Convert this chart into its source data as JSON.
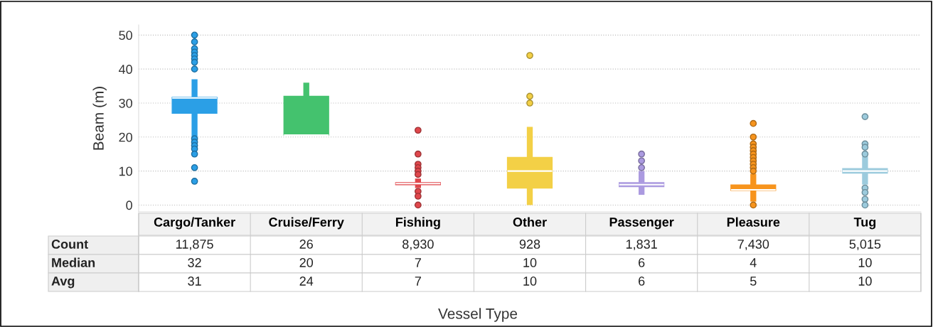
{
  "chart_data": {
    "type": "box",
    "ylabel": "Beam (m)",
    "ylim": [
      -2,
      53
    ],
    "yticks": [
      0,
      10,
      20,
      30,
      40,
      50
    ],
    "grid": "y",
    "categories": [
      "Cargo/Tanker",
      "Cruise/Ferry",
      "Fishing",
      "Other",
      "Passenger",
      "Pleasure",
      "Tug"
    ],
    "colors": [
      "#2b9fe6",
      "#44c26e",
      "#e0474c",
      "#f3d046",
      "#ab9ae0",
      "#f7941d",
      "#9ccbdd"
    ],
    "boxes": [
      {
        "low": 20,
        "q1": 27,
        "median": 31.5,
        "q3": 31.7,
        "high": 37,
        "outliers": [
          50,
          48,
          46,
          45,
          44,
          43,
          42,
          40,
          19.5,
          18.5,
          17.5,
          16.5,
          15,
          11,
          7
        ]
      },
      {
        "low": 20.6,
        "q1": 20.6,
        "median": 20.6,
        "q3": 32,
        "high": 36
      },
      {
        "low": 5,
        "q1": 6,
        "median": 6.3,
        "q3": 6.6,
        "high": 7.8,
        "outliers": [
          22,
          15,
          12,
          11,
          10,
          9,
          4,
          2.6,
          0
        ]
      },
      {
        "low": 0,
        "q1": 5,
        "median": 10,
        "q3": 14,
        "high": 23,
        "outliers": [
          44,
          32,
          30
        ]
      },
      {
        "low": 3,
        "q1": 5.4,
        "median": 6,
        "q3": 6.6,
        "high": 10,
        "outliers": [
          15,
          13,
          11
        ]
      },
      {
        "low": 1,
        "q1": 4.3,
        "median": 4.5,
        "q3": 5.9,
        "high": 9.2,
        "outliers": [
          24,
          20,
          18,
          17,
          16,
          15,
          14,
          13,
          12,
          11,
          10,
          0
        ]
      },
      {
        "low": 6,
        "q1": 9.4,
        "median": 10,
        "q3": 10.7,
        "high": 14.3,
        "outliers": [
          26,
          18,
          17,
          15,
          5,
          3.7,
          1.7,
          0
        ]
      }
    ],
    "annotations": [
      "Count",
      "11,875",
      "26",
      "8,930",
      "928",
      "1,831",
      "7,430",
      "5,015",
      "Median",
      "32",
      "20",
      "7",
      "10",
      "6",
      "4",
      "10",
      "Avg",
      "31",
      "24",
      "7",
      "10",
      "6",
      "5",
      "10",
      "Vessel Type"
    ]
  }
}
